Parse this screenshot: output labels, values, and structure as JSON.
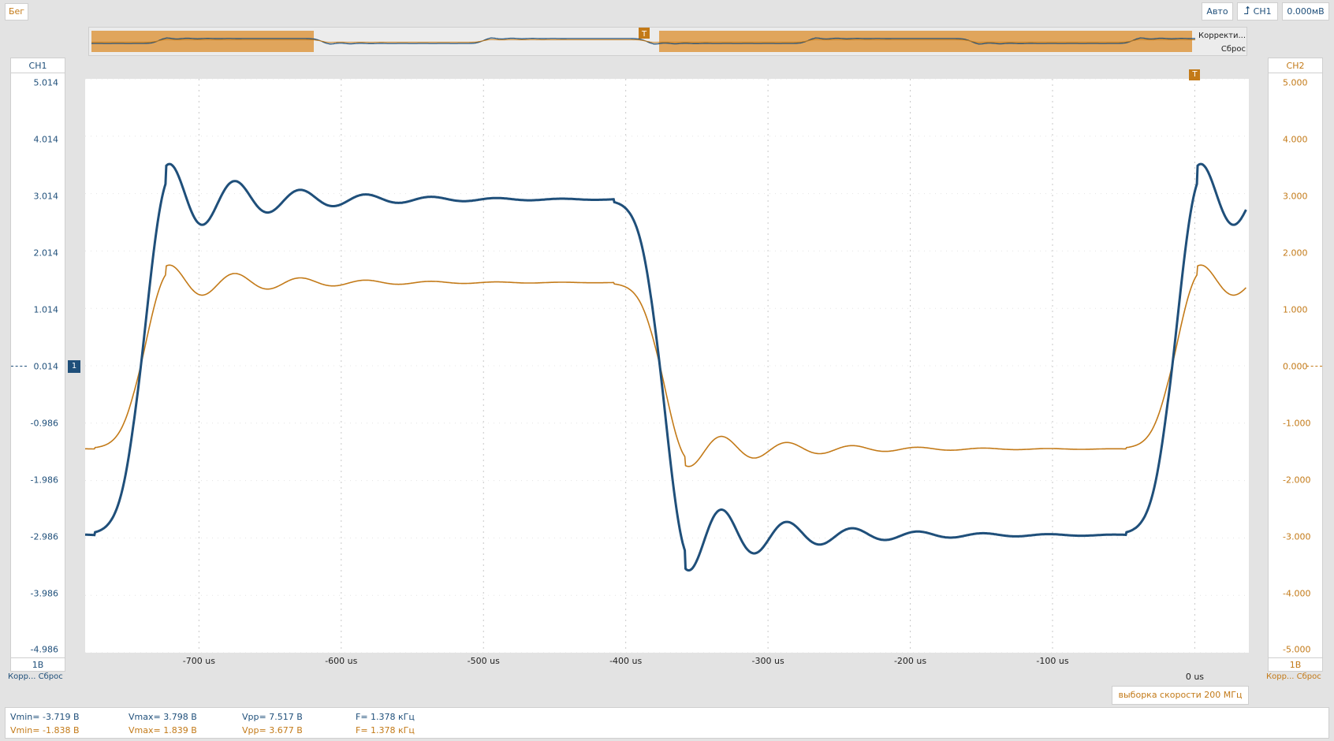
{
  "status": {
    "run_state": "Бег"
  },
  "trigger": {
    "mode": "Авто",
    "source": "CH1",
    "level": "0.000мВ",
    "marker": "T"
  },
  "overview": {
    "correction_label": "Корректи...",
    "reset_label": "Сброс"
  },
  "channels": {
    "ch1": {
      "name": "CH1",
      "color": "#1f4f7a",
      "ticks": [
        "5.014",
        "4.014",
        "3.014",
        "2.014",
        "1.014",
        "0.014",
        "-0.986",
        "-1.986",
        "-2.986",
        "-3.986",
        "-4.986"
      ],
      "scale": "1B",
      "corr_label": "Корр...",
      "reset_label": "Сброс",
      "ground_marker": "1"
    },
    "ch2": {
      "name": "CH2",
      "color": "#c37a18",
      "ticks": [
        "5.000",
        "4.000",
        "3.000",
        "2.000",
        "1.000",
        "0.000",
        "-1.000",
        "-2.000",
        "-3.000",
        "-4.000",
        "-5.000"
      ],
      "scale": "1B",
      "corr_label": "Корр...",
      "reset_label": "Сброс"
    }
  },
  "time_axis": {
    "labels": [
      "-700 us",
      "-600 us",
      "-500 us",
      "-400 us",
      "-300 us",
      "-200 us",
      "-100 us",
      "0 us"
    ]
  },
  "sample_rate": "выборка скорости 200 МГц",
  "measurements": {
    "ch1": {
      "vmin": "Vmin= -3.719 B",
      "vmax": "Vmax= 3.798 B",
      "vpp": "Vpp= 7.517 B",
      "freq": "F= 1.378 кГц"
    },
    "ch2": {
      "vmin": "Vmin= -1.838 B",
      "vmax": "Vmax= 1.839 B",
      "vpp": "Vpp= 3.677 B",
      "freq": "F= 1.378 кГц"
    }
  },
  "chart_data": {
    "type": "line",
    "x_unit": "us",
    "xlim": [
      -780,
      38
    ],
    "period_us": 725.7,
    "series": [
      {
        "name": "CH1",
        "color": "#1f4f7a",
        "y_axis": "left",
        "ylim": [
          -4.986,
          5.014
        ],
        "offset": 0.014,
        "high_level": 2.9,
        "low_level": -2.95,
        "overshoot": 0.85,
        "ringing_period_us": 46,
        "ringing_decay_us": 70
      },
      {
        "name": "CH2",
        "color": "#c37a18",
        "y_axis": "right",
        "ylim": [
          -5,
          5
        ],
        "offset": 0,
        "high_level": 1.45,
        "low_level": -1.45,
        "overshoot": 0.42,
        "ringing_period_us": 46,
        "ringing_decay_us": 70
      }
    ],
    "edges_us": [
      {
        "t": -743,
        "dir": "rise"
      },
      {
        "t": -378,
        "dir": "fall"
      },
      {
        "t": -18,
        "dir": "rise"
      }
    ]
  }
}
